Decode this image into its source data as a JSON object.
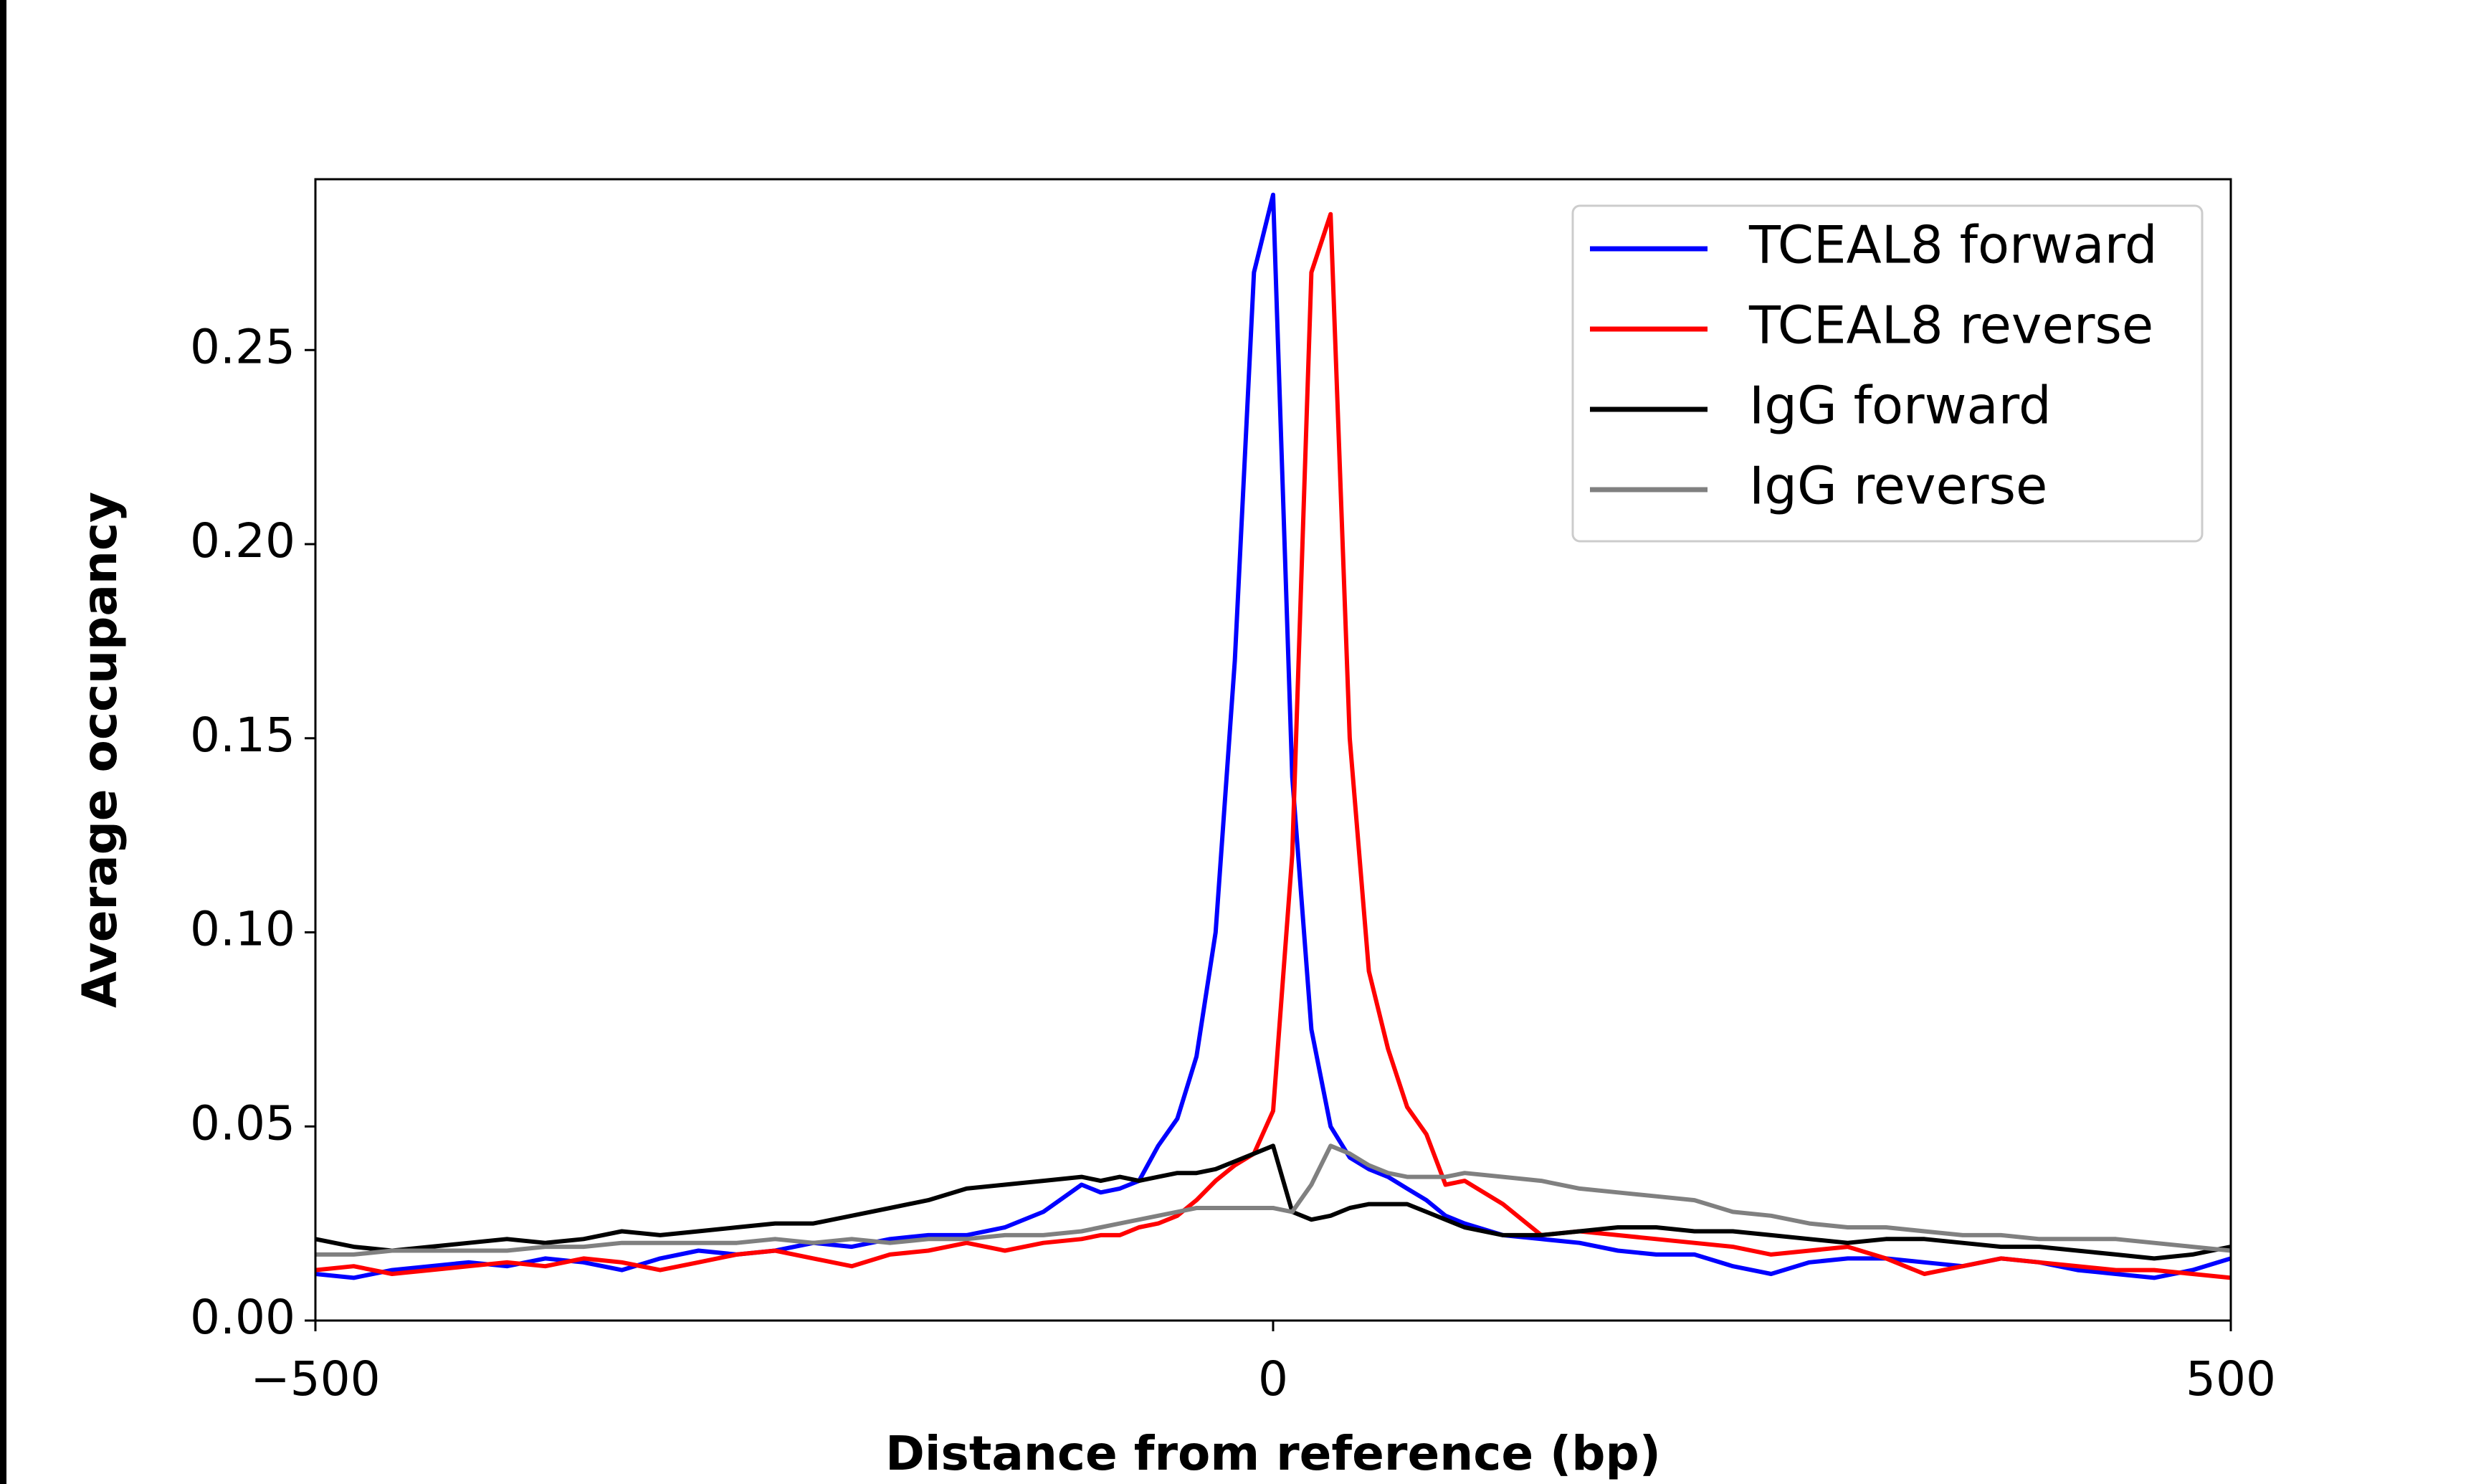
{
  "chart_data": {
    "type": "line",
    "xlabel": "Distance from reference (bp)",
    "ylabel": "Average occupancy",
    "x": [
      -500,
      -480,
      -460,
      -440,
      -420,
      -400,
      -380,
      -360,
      -340,
      -320,
      -300,
      -280,
      -260,
      -240,
      -220,
      -200,
      -180,
      -160,
      -140,
      -120,
      -100,
      -90,
      -80,
      -70,
      -60,
      -50,
      -40,
      -30,
      -20,
      -10,
      0,
      10,
      20,
      30,
      40,
      50,
      60,
      70,
      80,
      90,
      100,
      120,
      140,
      160,
      180,
      200,
      220,
      240,
      260,
      280,
      300,
      320,
      340,
      360,
      380,
      400,
      420,
      440,
      460,
      480,
      500
    ],
    "series": [
      {
        "name": "TCEAL8 forward",
        "color": "#0000ff",
        "values": [
          0.012,
          0.011,
          0.013,
          0.014,
          0.015,
          0.014,
          0.016,
          0.015,
          0.013,
          0.016,
          0.018,
          0.017,
          0.018,
          0.02,
          0.019,
          0.021,
          0.022,
          0.022,
          0.024,
          0.028,
          0.035,
          0.033,
          0.034,
          0.036,
          0.045,
          0.052,
          0.068,
          0.1,
          0.17,
          0.27,
          0.29,
          0.14,
          0.075,
          0.05,
          0.042,
          0.039,
          0.037,
          0.034,
          0.031,
          0.027,
          0.025,
          0.022,
          0.021,
          0.02,
          0.018,
          0.017,
          0.017,
          0.014,
          0.012,
          0.015,
          0.016,
          0.016,
          0.015,
          0.014,
          0.016,
          0.015,
          0.013,
          0.012,
          0.011,
          0.013,
          0.016
        ]
      },
      {
        "name": "TCEAL8 reverse",
        "color": "#ff0000",
        "values": [
          0.013,
          0.014,
          0.012,
          0.013,
          0.014,
          0.015,
          0.014,
          0.016,
          0.015,
          0.013,
          0.015,
          0.017,
          0.018,
          0.016,
          0.014,
          0.017,
          0.018,
          0.02,
          0.018,
          0.02,
          0.021,
          0.022,
          0.022,
          0.024,
          0.025,
          0.027,
          0.031,
          0.036,
          0.04,
          0.043,
          0.054,
          0.12,
          0.27,
          0.285,
          0.15,
          0.09,
          0.07,
          0.055,
          0.048,
          0.035,
          0.036,
          0.03,
          0.022,
          0.023,
          0.022,
          0.021,
          0.02,
          0.019,
          0.017,
          0.018,
          0.019,
          0.016,
          0.012,
          0.014,
          0.016,
          0.015,
          0.014,
          0.013,
          0.013,
          0.012,
          0.011
        ]
      },
      {
        "name": "IgG forward",
        "color": "#000000",
        "values": [
          0.021,
          0.019,
          0.018,
          0.019,
          0.02,
          0.021,
          0.02,
          0.021,
          0.023,
          0.022,
          0.023,
          0.024,
          0.025,
          0.025,
          0.027,
          0.029,
          0.031,
          0.034,
          0.035,
          0.036,
          0.037,
          0.036,
          0.037,
          0.036,
          0.037,
          0.038,
          0.038,
          0.039,
          0.041,
          0.043,
          0.045,
          0.028,
          0.026,
          0.027,
          0.029,
          0.03,
          0.03,
          0.03,
          0.028,
          0.026,
          0.024,
          0.022,
          0.022,
          0.023,
          0.024,
          0.024,
          0.023,
          0.023,
          0.022,
          0.021,
          0.02,
          0.021,
          0.021,
          0.02,
          0.019,
          0.019,
          0.018,
          0.017,
          0.016,
          0.017,
          0.019
        ]
      },
      {
        "name": "IgG reverse",
        "color": "#808080",
        "values": [
          0.017,
          0.017,
          0.018,
          0.018,
          0.018,
          0.018,
          0.019,
          0.019,
          0.02,
          0.02,
          0.02,
          0.02,
          0.021,
          0.02,
          0.021,
          0.02,
          0.021,
          0.021,
          0.022,
          0.022,
          0.023,
          0.024,
          0.025,
          0.026,
          0.027,
          0.028,
          0.029,
          0.029,
          0.029,
          0.029,
          0.029,
          0.028,
          0.035,
          0.045,
          0.043,
          0.04,
          0.038,
          0.037,
          0.037,
          0.037,
          0.038,
          0.037,
          0.036,
          0.034,
          0.033,
          0.032,
          0.031,
          0.028,
          0.027,
          0.025,
          0.024,
          0.024,
          0.023,
          0.022,
          0.022,
          0.021,
          0.021,
          0.021,
          0.02,
          0.019,
          0.018
        ]
      }
    ],
    "xlim": [
      -500,
      500
    ],
    "xticks": [
      {
        "value": -500,
        "label": "−500"
      },
      0,
      500
    ],
    "ylim": [
      0,
      0.294
    ],
    "yticks": [
      {
        "value": 0,
        "label": "0.00"
      },
      0.05,
      {
        "value": 0.1,
        "label": "0.10"
      },
      0.15,
      {
        "value": 0.2,
        "label": "0.20"
      },
      0.25
    ],
    "grid": false,
    "legend": "upper right"
  }
}
